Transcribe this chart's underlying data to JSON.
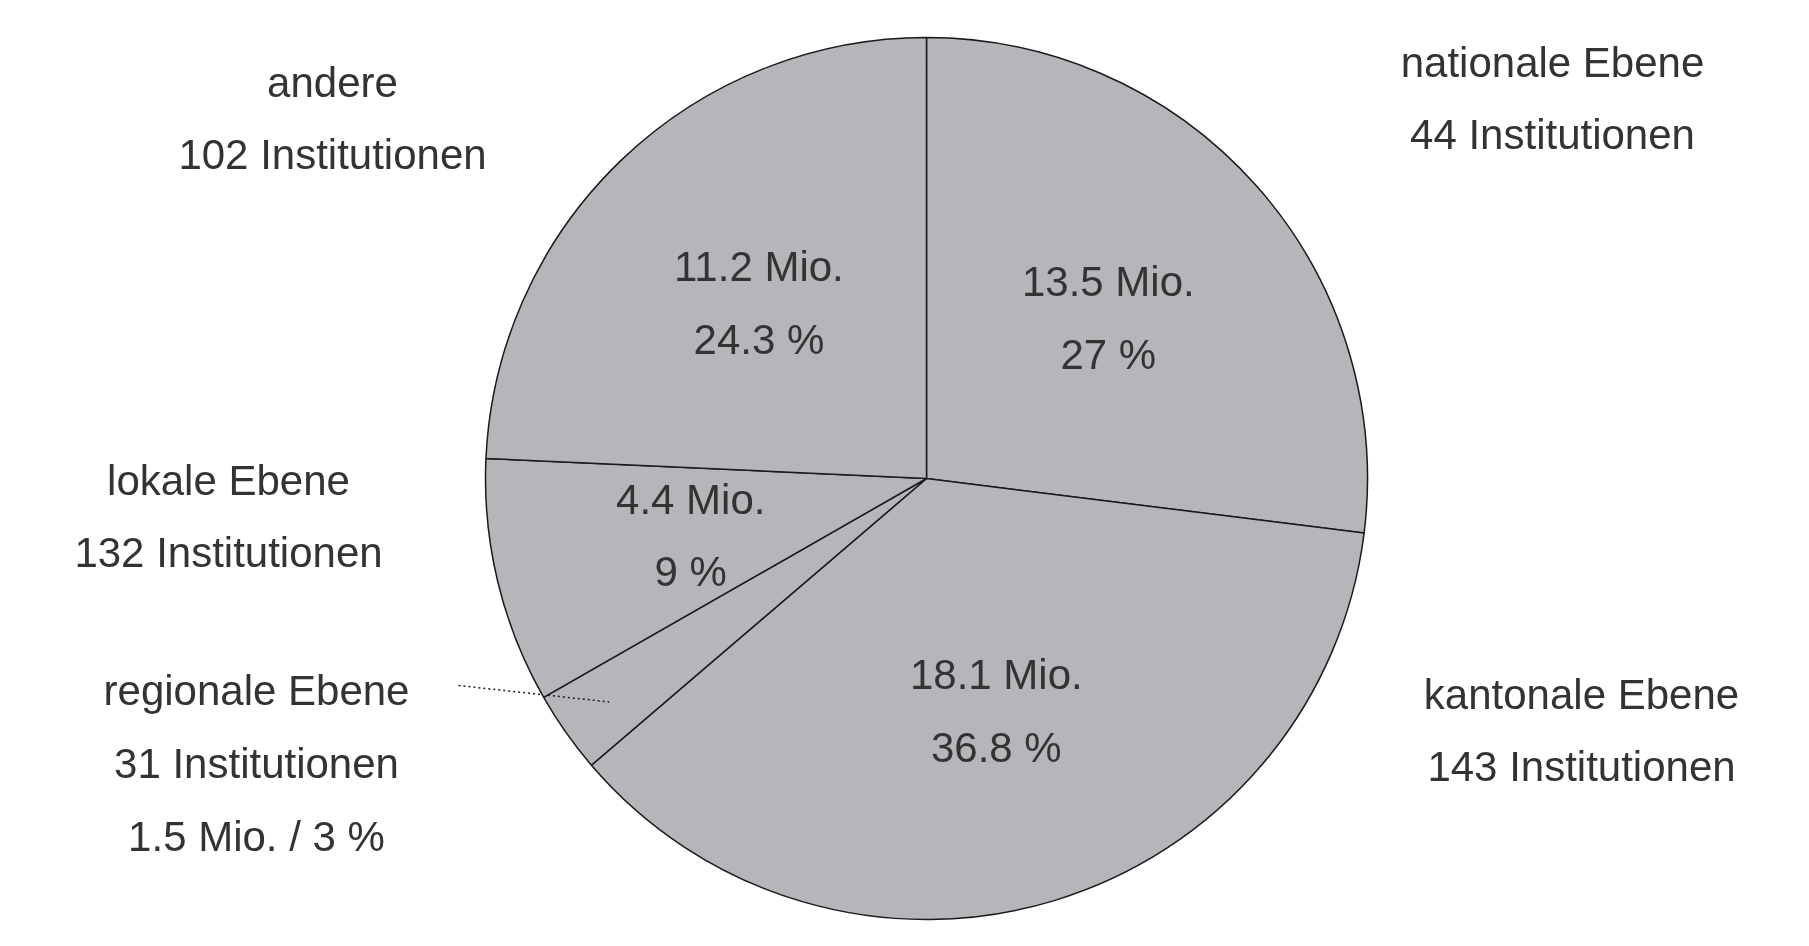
{
  "chart_data": {
    "type": "pie",
    "categories": [
      "nationale Ebene\n44 Institutionen",
      "kantonale Ebene\n143 Institutionen",
      "regionale Ebene\n31 Institutionen",
      "lokale Ebene\n132 Institutionen",
      "andere\n102 Institutionen"
    ],
    "values": [
      27,
      36.8,
      3,
      9,
      24.3
    ],
    "colors": [
      "#b5b6ba",
      "#b5b6ba",
      "#b5b6ba",
      "#b5b6ba",
      "#b5b6ba"
    ],
    "value_labels": [
      "13.5 Mio.\n27 %",
      "18.1 Mio.\n36.8 %",
      "1.5 Mio. / 3 %",
      "4.4 Mio.\n9 %",
      "11.2 Mio.\n24.3 %"
    ]
  }
}
